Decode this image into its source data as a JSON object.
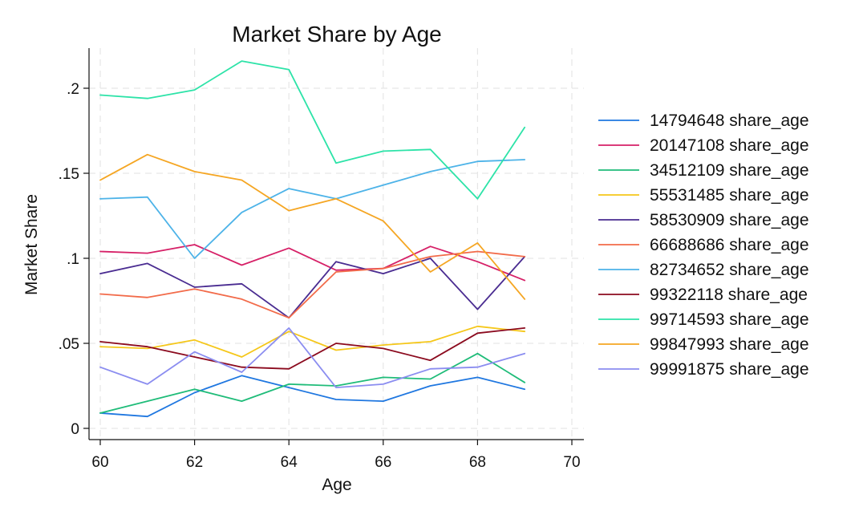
{
  "chart_data": {
    "type": "line",
    "title": "Market Share by Age",
    "xlabel": "Age",
    "ylabel": "Market Share",
    "xlim": [
      60,
      70
    ],
    "ylim": [
      0,
      0.2
    ],
    "x_ticks": [
      60,
      62,
      64,
      66,
      68,
      70
    ],
    "y_ticks": [
      0,
      0.05,
      0.1,
      0.15,
      0.2
    ],
    "y_tick_labels": [
      "0",
      ".05",
      ".1",
      ".15",
      ".2"
    ],
    "grid": true,
    "legend_position": "right",
    "x": [
      60,
      61,
      62,
      63,
      64,
      65,
      66,
      67,
      68,
      69
    ],
    "series": [
      {
        "name": "14794648 share_age",
        "color": "#1f77e0",
        "values": [
          0.009,
          0.007,
          0.021,
          0.031,
          0.024,
          0.017,
          0.016,
          0.025,
          0.03,
          0.023
        ]
      },
      {
        "name": "20147108 share_age",
        "color": "#d62067",
        "values": [
          0.104,
          0.103,
          0.108,
          0.096,
          0.106,
          0.093,
          0.094,
          0.107,
          0.098,
          0.087
        ]
      },
      {
        "name": "34512109 share_age",
        "color": "#1fbc79",
        "values": [
          0.009,
          0.016,
          0.023,
          0.016,
          0.026,
          0.025,
          0.03,
          0.029,
          0.044,
          0.027
        ]
      },
      {
        "name": "55531485 share_age",
        "color": "#f5c71a",
        "values": [
          0.048,
          0.047,
          0.052,
          0.042,
          0.057,
          0.046,
          0.049,
          0.051,
          0.06,
          0.057
        ]
      },
      {
        "name": "58530909 share_age",
        "color": "#4a2c91",
        "values": [
          0.091,
          0.097,
          0.083,
          0.085,
          0.065,
          0.098,
          0.091,
          0.1,
          0.07,
          0.101
        ]
      },
      {
        "name": "66688686 share_age",
        "color": "#f26b4a",
        "values": [
          0.079,
          0.077,
          0.082,
          0.076,
          0.065,
          0.092,
          0.094,
          0.101,
          0.104,
          0.101
        ]
      },
      {
        "name": "82734652 share_age",
        "color": "#4db3e8",
        "values": [
          0.135,
          0.136,
          0.1,
          0.127,
          0.141,
          0.135,
          0.143,
          0.151,
          0.157,
          0.158
        ]
      },
      {
        "name": "99322118 share_age",
        "color": "#8b0a1e",
        "values": [
          0.051,
          0.048,
          0.042,
          0.036,
          0.035,
          0.05,
          0.047,
          0.04,
          0.056,
          0.059
        ]
      },
      {
        "name": "99714593 share_age",
        "color": "#2de3a8",
        "values": [
          0.196,
          0.194,
          0.199,
          0.216,
          0.211,
          0.156,
          0.163,
          0.164,
          0.135,
          0.177
        ]
      },
      {
        "name": "99847993 share_age",
        "color": "#f5a623",
        "values": [
          0.146,
          0.161,
          0.151,
          0.146,
          0.128,
          0.135,
          0.122,
          0.092,
          0.109,
          0.076
        ]
      },
      {
        "name": "99991875 share_age",
        "color": "#8b8df0",
        "values": [
          0.036,
          0.026,
          0.045,
          0.033,
          0.059,
          0.024,
          0.026,
          0.035,
          0.036,
          0.044
        ]
      }
    ]
  }
}
